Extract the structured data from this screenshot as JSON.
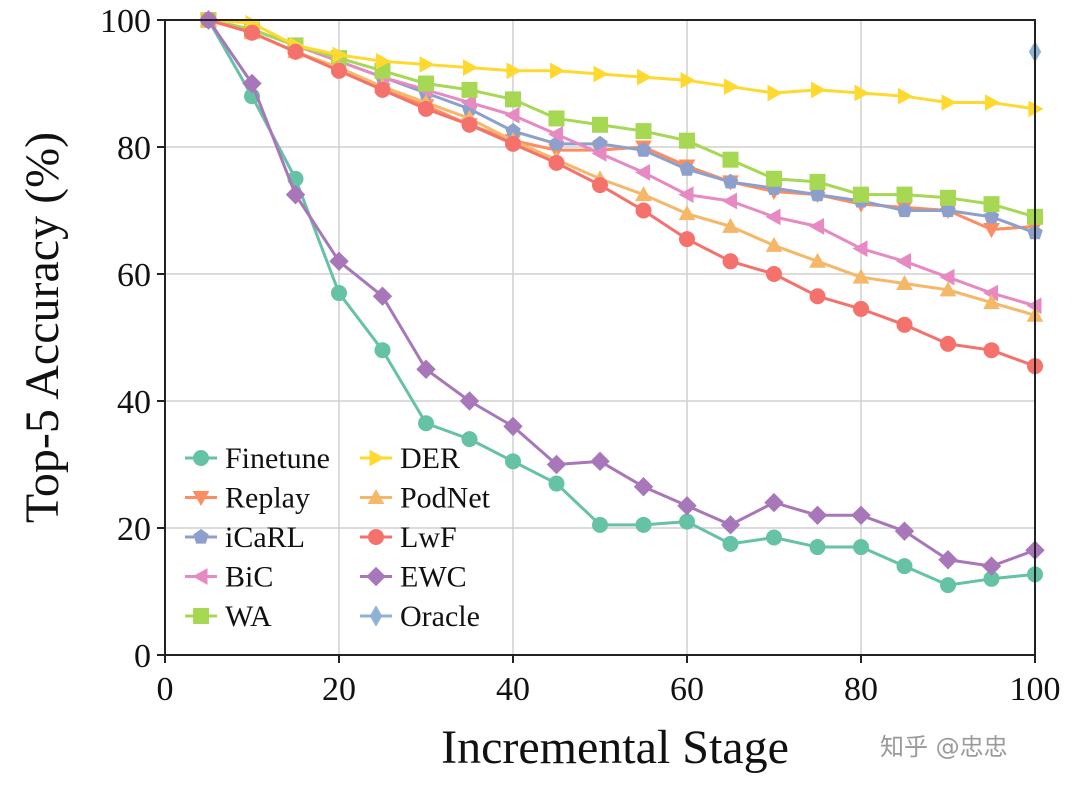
{
  "chart_data": {
    "type": "line",
    "xlabel": "Incremental Stage",
    "ylabel": "Top-5 Accuracy (%)",
    "xlim": [
      0,
      100
    ],
    "ylim": [
      0,
      100
    ],
    "xticks": [
      0,
      20,
      40,
      60,
      80,
      100
    ],
    "yticks": [
      0,
      20,
      40,
      60,
      80,
      100
    ],
    "grid": true,
    "legend_location": "lower-left",
    "x": [
      5,
      10,
      15,
      20,
      25,
      30,
      35,
      40,
      45,
      50,
      55,
      60,
      65,
      70,
      75,
      80,
      85,
      90,
      95,
      100
    ],
    "series": [
      {
        "name": "Finetune",
        "color": "#66c2a5",
        "marker": "circle",
        "values": [
          100,
          88,
          75,
          57,
          48,
          36.5,
          34,
          30.5,
          27,
          20.5,
          20.5,
          21,
          17.5,
          18.5,
          17,
          17,
          14,
          11,
          12,
          12.7
        ]
      },
      {
        "name": "Replay",
        "color": "#fc8d62",
        "marker": "triangle-down",
        "values": [
          100,
          98,
          95,
          92.5,
          89,
          86.5,
          83.5,
          81,
          79.5,
          79.5,
          80,
          77,
          74.5,
          73,
          72.5,
          71,
          70.5,
          70,
          67,
          67.5
        ]
      },
      {
        "name": "iCaRL",
        "color": "#8da0cb",
        "marker": "pentagon",
        "values": [
          100,
          98.5,
          96,
          93.5,
          91,
          88.5,
          86,
          82.5,
          80.5,
          80.5,
          79.5,
          76.5,
          74.5,
          73.5,
          72.5,
          71.5,
          70,
          70,
          69,
          66.5
        ]
      },
      {
        "name": "BiC",
        "color": "#e78ac3",
        "marker": "triangle-left",
        "values": [
          100,
          98.5,
          96,
          93.5,
          91,
          89,
          87,
          85,
          82,
          79,
          76,
          72.5,
          71.5,
          69,
          67.5,
          64,
          62,
          59.5,
          57,
          55
        ]
      },
      {
        "name": "WA",
        "color": "#a6d854",
        "marker": "square",
        "values": [
          100,
          98.5,
          96,
          94,
          92,
          90,
          89,
          87.5,
          84.5,
          83.5,
          82.5,
          81,
          78,
          75,
          74.5,
          72.5,
          72.5,
          72,
          71,
          69
        ]
      },
      {
        "name": "DER",
        "color": "#ffd92f",
        "marker": "triangle-right",
        "values": [
          100,
          99.5,
          96,
          94.5,
          93.5,
          93,
          92.5,
          92,
          92,
          91.5,
          91,
          90.5,
          89.5,
          88.5,
          89,
          88.5,
          88,
          87,
          87,
          86
        ]
      },
      {
        "name": "PodNet",
        "color": "#f5b868",
        "marker": "triangle-up",
        "values": [
          100,
          98,
          95,
          92.5,
          89.5,
          87,
          84.5,
          81,
          78,
          75,
          72.5,
          69.5,
          67.5,
          64.5,
          62,
          59.5,
          58.5,
          57.5,
          55.5,
          53.5
        ]
      },
      {
        "name": "LwF",
        "color": "#f4726b",
        "marker": "circle",
        "values": [
          100,
          98,
          95,
          92,
          89,
          86,
          83.5,
          80.5,
          77.5,
          74,
          70,
          65.5,
          62,
          60,
          56.5,
          54.5,
          52,
          49,
          48,
          45.5
        ]
      },
      {
        "name": "EWC",
        "color": "#a877b9",
        "marker": "diamond",
        "values": [
          100,
          90,
          72.5,
          62,
          56.5,
          45,
          40,
          36,
          30,
          30.5,
          26.5,
          23.5,
          20.5,
          24,
          22,
          22,
          19.5,
          15,
          14,
          16.5
        ]
      },
      {
        "name": "Oracle",
        "color": "#8fb3d6",
        "marker": "thin-diamond",
        "points": [
          [
            100,
            95
          ]
        ]
      }
    ]
  },
  "watermark": "知乎 @忠忠"
}
